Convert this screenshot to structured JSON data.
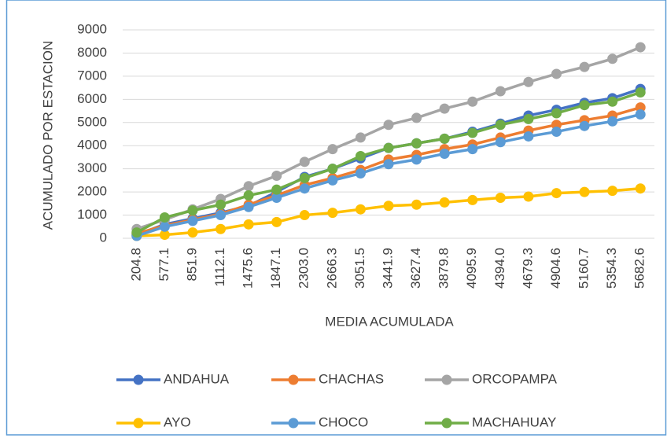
{
  "chart_data": {
    "type": "line",
    "xlabel": "MEDIA ACUMULADA",
    "ylabel": "ACUMULADO POR ESTACION",
    "categories": [
      "204.8",
      "577.1",
      "851.9",
      "1112.1",
      "1475.6",
      "1847.1",
      "2303.0",
      "2666.3",
      "3051.5",
      "3441.9",
      "3627.4",
      "3879.8",
      "4095.9",
      "4394.0",
      "4679.3",
      "4904.6",
      "5160.7",
      "5354.3",
      "5682.6"
    ],
    "series": [
      {
        "name": "ANDAHUA",
        "color": "#4472c4",
        "values": [
          150,
          600,
          850,
          1100,
          1400,
          2000,
          2650,
          3000,
          3450,
          3900,
          4100,
          4300,
          4600,
          4950,
          5300,
          5550,
          5850,
          6050,
          6450
        ]
      },
      {
        "name": "CHACHAS",
        "color": "#ed7d31",
        "values": [
          200,
          550,
          800,
          1050,
          1450,
          1850,
          2300,
          2600,
          2950,
          3400,
          3600,
          3850,
          4050,
          4350,
          4650,
          4900,
          5100,
          5300,
          5650
        ]
      },
      {
        "name": "ORCOPAMPA",
        "color": "#a5a5a5",
        "values": [
          400,
          800,
          1250,
          1700,
          2250,
          2700,
          3300,
          3850,
          4350,
          4900,
          5200,
          5600,
          5900,
          6350,
          6750,
          7100,
          7400,
          7750,
          8250
        ]
      },
      {
        "name": "AYO",
        "color": "#ffc000",
        "values": [
          100,
          150,
          250,
          400,
          600,
          700,
          1000,
          1100,
          1250,
          1400,
          1450,
          1550,
          1650,
          1750,
          1800,
          1950,
          2000,
          2050,
          2150
        ]
      },
      {
        "name": "CHOCO",
        "color": "#5b9bd5",
        "values": [
          100,
          500,
          750,
          1000,
          1350,
          1750,
          2150,
          2500,
          2800,
          3200,
          3400,
          3650,
          3850,
          4150,
          4400,
          4600,
          4850,
          5050,
          5350
        ]
      },
      {
        "name": "MACHAHUAY",
        "color": "#70ad47",
        "values": [
          250,
          900,
          1200,
          1450,
          1850,
          2100,
          2600,
          3000,
          3550,
          3900,
          4100,
          4300,
          4550,
          4900,
          5150,
          5400,
          5750,
          5900,
          6300
        ]
      }
    ],
    "ylim": [
      0,
      9000
    ],
    "yticks": [
      0,
      1000,
      2000,
      3000,
      4000,
      5000,
      6000,
      7000,
      8000,
      9000
    ],
    "grid": true,
    "legend": "bottom"
  }
}
